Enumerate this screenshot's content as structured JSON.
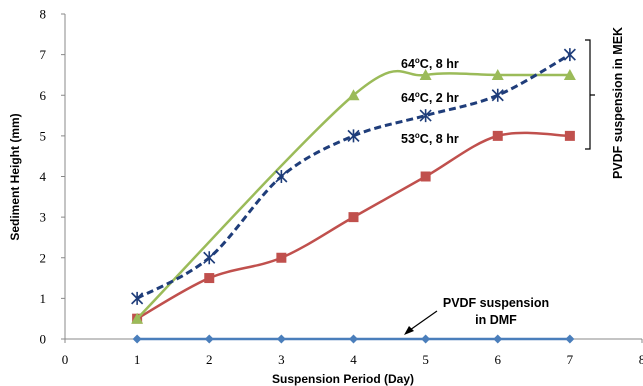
{
  "chart_data": {
    "type": "line",
    "xlabel": "Suspension Period (Day)",
    "ylabel": "Sediment Height (mm)",
    "xlim": [
      0,
      8
    ],
    "ylim": [
      0,
      8
    ],
    "x_ticks": [
      "0",
      "1",
      "2",
      "3",
      "4",
      "5",
      "6",
      "7",
      "8"
    ],
    "y_ticks": [
      "0",
      "1",
      "2",
      "3",
      "4",
      "5",
      "6",
      "7",
      "8"
    ],
    "grid": false,
    "legend": "none",
    "series": [
      {
        "label": "64°C, 8 hr",
        "color": "#9bbb59",
        "marker": "triangle",
        "dashed": false,
        "x": [
          1,
          4,
          5,
          6,
          7
        ],
        "y": [
          0.5,
          6,
          6.5,
          6.5,
          6.5
        ]
      },
      {
        "label": "64°C, 2 hr",
        "color": "#1f3d7a",
        "marker": "asterisk",
        "dashed": true,
        "x": [
          1,
          2,
          3,
          4,
          5,
          6,
          7
        ],
        "y": [
          1,
          2,
          4,
          5,
          5.5,
          6,
          7
        ]
      },
      {
        "label": "53°C, 8 hr",
        "color": "#c0504d",
        "marker": "square",
        "dashed": false,
        "x": [
          1,
          2,
          3,
          4,
          5,
          6,
          7
        ],
        "y": [
          0.5,
          1.5,
          2,
          3,
          4,
          5,
          5
        ]
      },
      {
        "label": "PVDF suspension in DMF",
        "color": "#4a7ebb",
        "marker": "diamond",
        "dashed": false,
        "x": [
          1,
          2,
          3,
          4,
          5,
          6,
          7
        ],
        "y": [
          0,
          0,
          0,
          0,
          0,
          0,
          0
        ]
      }
    ],
    "annotations": {
      "a64_8_main": "64",
      "a64_8_rest": "C, 8 hr",
      "a64_2_main": "64",
      "a64_2_rest": "C, 2 hr",
      "a53_8_main": "53",
      "a53_8_rest": "C, 8 hr",
      "degree_sup": "o",
      "bracket_label": "PVDF suspension in MEK",
      "dmf_line1": "PVDF suspension",
      "dmf_line2": "in DMF"
    }
  }
}
